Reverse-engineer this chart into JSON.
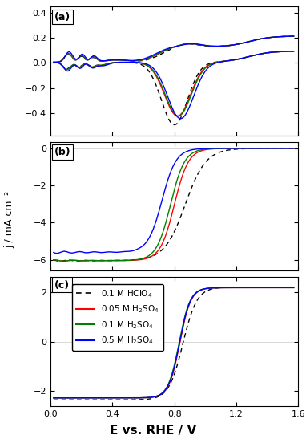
{
  "title_a": "(a)",
  "title_b": "(b)",
  "title_c": "(c)",
  "xlabel": "E vs. RHE / V",
  "ylabel": "j / mA cm⁻²",
  "xlim": [
    0.0,
    1.6
  ],
  "ylim_a": [
    -0.58,
    0.45
  ],
  "ylim_b": [
    -6.6,
    0.35
  ],
  "ylim_c": [
    -2.6,
    2.6
  ],
  "yticks_a": [
    -0.4,
    -0.2,
    0.0,
    0.2,
    0.4
  ],
  "yticks_b": [
    0.0,
    -2.0,
    -4.0,
    -6.0
  ],
  "yticks_c": [
    -2.0,
    0.0,
    2.0
  ],
  "xticks": [
    0.0,
    0.4,
    0.8,
    1.2,
    1.6
  ],
  "colors": {
    "hclo4": "black",
    "h2so4_005": "red",
    "h2so4_01": "green",
    "h2so4_05": "blue"
  },
  "legend_labels": [
    "0.1 M HClO$_4$",
    "0.05 M H$_2$SO$_4$",
    "0.1 M H$_2$SO$_4$",
    "0.5 M H$_2$SO$_4$"
  ],
  "figsize": [
    3.82,
    5.47
  ],
  "dpi": 100
}
